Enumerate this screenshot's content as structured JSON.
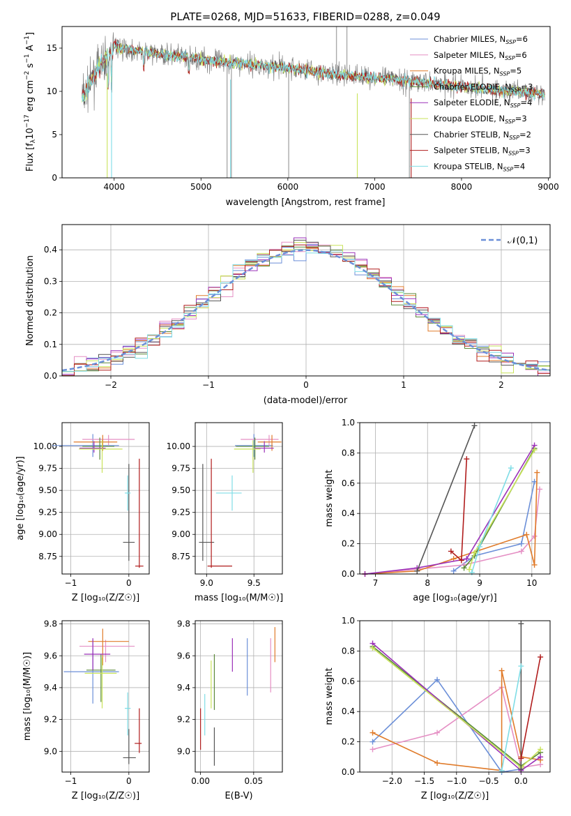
{
  "palette": {
    "chabrier_miles": "#6b8fd8",
    "salpeter_miles": "#e58fc4",
    "kroupa_miles": "#e07b2a",
    "chabrier_elodie": "#5c8a3a",
    "salpeter_elodie": "#9b30b8",
    "kroupa_elodie": "#c9e35a",
    "chabrier_stelib": "#555555",
    "salpeter_stelib": "#b01c1c",
    "kroupa_stelib": "#7fdde6",
    "data": "#808080"
  },
  "legend_models": [
    {
      "key": "chabrier_miles",
      "label": "Chabrier MILES, N",
      "sub": "SSP",
      "tail": "=6"
    },
    {
      "key": "salpeter_miles",
      "label": "Salpeter MILES, N",
      "sub": "SSP",
      "tail": "=6"
    },
    {
      "key": "kroupa_miles",
      "label": "Kroupa MILES, N",
      "sub": "SSP",
      "tail": "=5"
    },
    {
      "key": "chabrier_elodie",
      "label": "Chabrier ELODIE, N",
      "sub": "SSP",
      "tail": "=3"
    },
    {
      "key": "salpeter_elodie",
      "label": "Salpeter ELODIE, N",
      "sub": "SSP",
      "tail": "=4"
    },
    {
      "key": "kroupa_elodie",
      "label": "Kroupa ELODIE, N",
      "sub": "SSP",
      "tail": "=3"
    },
    {
      "key": "chabrier_stelib",
      "label": "Chabrier STELIB, N",
      "sub": "SSP",
      "tail": "=2"
    },
    {
      "key": "salpeter_stelib",
      "label": "Salpeter STELIB, N",
      "sub": "SSP",
      "tail": "=3"
    },
    {
      "key": "kroupa_stelib",
      "label": "Kroupa STELIB, N",
      "sub": "SSP",
      "tail": "=4"
    }
  ],
  "chart_data": [
    {
      "id": "spectrum",
      "type": "line",
      "title": "PLATE=0268, MJD=51633, FIBERID=0288, z=0.049",
      "xlabel": "wavelength [Angstrom, rest frame]",
      "ylabel_parts": [
        "Flux [f",
        "λ",
        "10",
        "−17",
        " erg cm",
        "−2",
        " s",
        "−1",
        " A",
        "−1",
        "]"
      ],
      "xlim": [
        3400,
        9020
      ],
      "ylim": [
        0,
        17.5
      ],
      "xticks": [
        4000,
        5000,
        6000,
        7000,
        8000,
        9000
      ],
      "yticks": [
        0,
        5,
        10,
        15
      ],
      "grid": false,
      "legend": "top-right",
      "continuum": {
        "x": [
          3640,
          3700,
          3800,
          3900,
          3950,
          4000,
          4100,
          4300,
          4500,
          4700,
          4900,
          5100,
          5300,
          5500,
          5700,
          6000,
          6300,
          6600,
          6900,
          7200,
          7500,
          7800,
          8100,
          8400,
          8700,
          8950
        ],
        "y": [
          9.3,
          10.5,
          12.5,
          13.8,
          14.5,
          15.2,
          15.0,
          14.6,
          14.3,
          14.1,
          13.9,
          13.6,
          13.4,
          13.2,
          13.0,
          12.7,
          12.3,
          11.9,
          11.7,
          11.4,
          11.1,
          10.8,
          10.5,
          10.1,
          9.9,
          9.7
        ]
      },
      "data_range": [
        3630,
        8960
      ]
    },
    {
      "id": "residuals",
      "type": "line",
      "title": "",
      "xlabel": "(data-model)/error",
      "ylabel": "Normed distribution",
      "xlim": [
        -2.5,
        2.5
      ],
      "ylim": [
        0,
        0.48
      ],
      "xticks": [
        -2,
        -1,
        0,
        1,
        2
      ],
      "xticklabels": [
        "−2",
        "−1",
        "0",
        "1",
        "2"
      ],
      "yticks": [
        0.0,
        0.1,
        0.2,
        0.3,
        0.4
      ],
      "yticklabels": [
        "0.0",
        "0.1",
        "0.2",
        "0.3",
        "0.4"
      ],
      "grid": true,
      "legend": "top-right",
      "legend_label": "𝒩(0,1)",
      "bins": 40
    },
    {
      "id": "age_vs_Z",
      "type": "scatter",
      "xlabel": "Z [log₁₀(Z/Z☉)]",
      "ylabel": "age  [log₁₀(age/yr)]",
      "xlim": [
        -1.15,
        0.35
      ],
      "ylim": [
        8.55,
        10.27
      ],
      "xticks": [
        -1,
        0
      ],
      "xticklabels": [
        "−1",
        "0"
      ],
      "yticks": [
        8.75,
        9.0,
        9.25,
        9.5,
        9.75,
        10.0
      ],
      "yticklabels": [
        "8.75",
        "9.00",
        "9.25",
        "9.50",
        "9.75",
        "10.00"
      ],
      "grid": true,
      "points": [
        {
          "key": "chabrier_miles",
          "x": -0.62,
          "y": 10.01,
          "xe": [
            0.7,
            0.45
          ],
          "ye": [
            0.13,
            0.13
          ]
        },
        {
          "key": "salpeter_miles",
          "x": -0.35,
          "y": 10.08,
          "xe": [
            0.45,
            0.45
          ],
          "ye": [
            0.07,
            0.05
          ]
        },
        {
          "key": "kroupa_miles",
          "x": -0.45,
          "y": 10.05,
          "xe": [
            0.5,
            0.25
          ],
          "ye": [
            0.1,
            0.08
          ]
        },
        {
          "key": "chabrier_elodie",
          "x": -0.5,
          "y": 10.0,
          "xe": [
            0.3,
            0.25
          ],
          "ye": [
            0.15,
            0.1
          ]
        },
        {
          "key": "salpeter_elodie",
          "x": -0.6,
          "y": 9.98,
          "xe": [
            0.25,
            0.2
          ],
          "ye": [
            0.05,
            0.08
          ]
        },
        {
          "key": "kroupa_elodie",
          "x": -0.46,
          "y": 9.97,
          "xe": [
            0.4,
            0.35
          ],
          "ye": [
            0.27,
            0.1
          ]
        },
        {
          "key": "chabrier_stelib",
          "x": 0.0,
          "y": 8.91,
          "xe": [
            0.1,
            0.1
          ],
          "ye": [
            0.21,
            0.89
          ]
        },
        {
          "key": "salpeter_stelib",
          "x": 0.18,
          "y": 8.64,
          "xe": [
            0.07,
            0.07
          ],
          "ye": [
            0.02,
            1.22
          ]
        },
        {
          "key": "kroupa_stelib",
          "x": -0.02,
          "y": 9.47,
          "xe": [
            0.05,
            0.05
          ],
          "ye": [
            0.2,
            0.2
          ]
        }
      ]
    },
    {
      "id": "age_vs_mass",
      "type": "scatter",
      "xlabel": "mass [log₁₀(M/M☉)]",
      "ylabel": "",
      "xlim": [
        8.88,
        9.8
      ],
      "ylim": [
        8.55,
        10.27
      ],
      "xticks": [
        9.0,
        9.5
      ],
      "xticklabels": [
        "9.0",
        "9.5"
      ],
      "yticks": [
        8.75,
        9.0,
        9.25,
        9.5,
        9.75,
        10.0
      ],
      "yticklabels": [
        "8.75",
        "9.00",
        "9.25",
        "9.50",
        "9.75",
        "10.00"
      ],
      "grid": true,
      "points": [
        {
          "key": "chabrier_miles",
          "x": 9.5,
          "y": 10.01,
          "xe": [
            0.2,
            0.2
          ],
          "ye": [
            0.13,
            0.13
          ]
        },
        {
          "key": "salpeter_miles",
          "x": 9.66,
          "y": 10.08,
          "xe": [
            0.3,
            0.1
          ],
          "ye": [
            0.07,
            0.05
          ]
        },
        {
          "key": "kroupa_miles",
          "x": 9.69,
          "y": 10.05,
          "xe": [
            0.15,
            0.1
          ],
          "ye": [
            0.1,
            0.08
          ]
        },
        {
          "key": "chabrier_elodie",
          "x": 9.51,
          "y": 10.0,
          "xe": [
            0.2,
            0.15
          ],
          "ye": [
            0.15,
            0.1
          ]
        },
        {
          "key": "salpeter_elodie",
          "x": 9.61,
          "y": 9.98,
          "xe": [
            0.1,
            0.1
          ],
          "ye": [
            0.05,
            0.08
          ]
        },
        {
          "key": "kroupa_elodie",
          "x": 9.49,
          "y": 9.97,
          "xe": [
            0.2,
            0.08
          ],
          "ye": [
            0.27,
            0.1
          ]
        },
        {
          "key": "chabrier_stelib",
          "x": 8.96,
          "y": 8.91,
          "xe": [
            0.04,
            0.12
          ],
          "ye": [
            0.21,
            0.89
          ]
        },
        {
          "key": "salpeter_stelib",
          "x": 9.05,
          "y": 8.64,
          "xe": [
            0.04,
            0.22
          ],
          "ye": [
            0.02,
            1.22
          ]
        },
        {
          "key": "kroupa_stelib",
          "x": 9.27,
          "y": 9.47,
          "xe": [
            0.17,
            0.1
          ],
          "ye": [
            0.2,
            0.2
          ]
        }
      ]
    },
    {
      "id": "mass_weight_vs_age",
      "type": "line",
      "xlabel": "age  [log₁₀(age/yr)]",
      "ylabel": "mass weight",
      "xlim": [
        6.7,
        10.35
      ],
      "ylim": [
        0,
        1.0
      ],
      "xticks": [
        7,
        8,
        9,
        10
      ],
      "yticks": [
        0.0,
        0.2,
        0.4,
        0.6,
        0.8,
        1.0
      ],
      "yticklabels": [
        "0.0",
        "0.2",
        "0.4",
        "0.6",
        "0.8",
        "1.0"
      ],
      "grid": true,
      "series": [
        {
          "key": "chabrier_miles",
          "x": [
            8.5,
            8.9,
            9.8,
            10.05
          ],
          "y": [
            0.02,
            0.12,
            0.2,
            0.61
          ]
        },
        {
          "key": "salpeter_miles",
          "x": [
            6.8,
            8.7,
            9.8,
            10.05,
            10.15
          ],
          "y": [
            0.0,
            0.06,
            0.15,
            0.25,
            0.56
          ]
        },
        {
          "key": "kroupa_miles",
          "x": [
            6.8,
            7.8,
            8.5,
            9.9,
            10.05,
            10.1
          ],
          "y": [
            0.0,
            0.02,
            0.1,
            0.26,
            0.06,
            0.67
          ]
        },
        {
          "key": "chabrier_elodie",
          "x": [
            8.7,
            8.9,
            10.05
          ],
          "y": [
            0.04,
            0.12,
            0.83
          ]
        },
        {
          "key": "salpeter_elodie",
          "x": [
            6.8,
            7.8,
            8.75,
            10.05
          ],
          "y": [
            0.0,
            0.04,
            0.1,
            0.85
          ]
        },
        {
          "key": "kroupa_elodie",
          "x": [
            8.8,
            8.9,
            10.05
          ],
          "y": [
            0.03,
            0.14,
            0.82
          ]
        },
        {
          "key": "chabrier_stelib",
          "x": [
            7.8,
            8.9
          ],
          "y": [
            0.02,
            0.98
          ]
        },
        {
          "key": "salpeter_stelib",
          "x": [
            8.45,
            8.65,
            8.75
          ],
          "y": [
            0.15,
            0.09,
            0.76
          ]
        },
        {
          "key": "kroupa_stelib",
          "x": [
            8.85,
            9.0,
            9.6
          ],
          "y": [
            0.01,
            0.18,
            0.7
          ]
        }
      ]
    },
    {
      "id": "mass_vs_Z",
      "type": "scatter",
      "xlabel": "Z [log₁₀(Z/Z☉)]",
      "ylabel": "mass [log₁₀(M/M☉)]",
      "xlim": [
        -1.15,
        0.35
      ],
      "ylim": [
        8.87,
        9.82
      ],
      "xticks": [
        -1,
        0
      ],
      "xticklabels": [
        "−1",
        "0"
      ],
      "yticks": [
        9.0,
        9.2,
        9.4,
        9.6,
        9.8
      ],
      "yticklabels": [
        "9.0",
        "9.2",
        "9.4",
        "9.6",
        "9.8"
      ],
      "grid": true,
      "points": [
        {
          "key": "chabrier_miles",
          "x": -0.62,
          "y": 9.5,
          "xe": [
            0.5,
            0.45
          ],
          "ye": [
            0.2,
            0.2
          ]
        },
        {
          "key": "salpeter_miles",
          "x": -0.4,
          "y": 9.66,
          "xe": [
            0.45,
            0.5
          ],
          "ye": [
            0.1,
            0.04
          ]
        },
        {
          "key": "kroupa_miles",
          "x": -0.45,
          "y": 9.69,
          "xe": [
            0.25,
            0.45
          ],
          "ye": [
            0.15,
            0.08
          ]
        },
        {
          "key": "chabrier_elodie",
          "x": -0.48,
          "y": 9.51,
          "xe": [
            0.25,
            0.25
          ],
          "ye": [
            0.2,
            0.1
          ]
        },
        {
          "key": "salpeter_elodie",
          "x": -0.62,
          "y": 9.61,
          "xe": [
            0.15,
            0.3
          ],
          "ye": [
            0.1,
            0.1
          ]
        },
        {
          "key": "kroupa_elodie",
          "x": -0.46,
          "y": 9.49,
          "xe": [
            0.3,
            0.25
          ],
          "ye": [
            0.22,
            0.1
          ]
        },
        {
          "key": "chabrier_stelib",
          "x": 0.0,
          "y": 8.96,
          "xe": [
            0.1,
            0.12
          ],
          "ye": [
            0.04,
            0.18
          ]
        },
        {
          "key": "salpeter_stelib",
          "x": 0.18,
          "y": 9.05,
          "xe": [
            0.08,
            0.04
          ],
          "ye": [
            0.06,
            0.22
          ]
        },
        {
          "key": "kroupa_stelib",
          "x": -0.02,
          "y": 9.27,
          "xe": [
            0.05,
            0.05
          ],
          "ye": [
            0.17,
            0.1
          ]
        }
      ]
    },
    {
      "id": "mass_vs_ebv",
      "type": "scatter",
      "xlabel": "E(B-V)",
      "ylabel": "",
      "xlim": [
        -0.005,
        0.077
      ],
      "ylim": [
        8.87,
        9.82
      ],
      "xticks": [
        0.0,
        0.05
      ],
      "xticklabels": [
        "0.00",
        "0.05"
      ],
      "yticks": [
        9.0,
        9.2,
        9.4,
        9.6,
        9.8
      ],
      "yticklabels": [
        "9.0",
        "9.2",
        "9.4",
        "9.6",
        "9.8"
      ],
      "grid": true,
      "points": [
        {
          "key": "chabrier_miles",
          "x": 0.044,
          "y": 9.5,
          "ye": [
            0.15,
            0.21
          ]
        },
        {
          "key": "salpeter_miles",
          "x": 0.066,
          "y": 9.52,
          "ye": [
            0.15,
            0.19
          ]
        },
        {
          "key": "kroupa_miles",
          "x": 0.07,
          "y": 9.67,
          "ye": [
            0.11,
            0.11
          ]
        },
        {
          "key": "chabrier_elodie",
          "x": 0.013,
          "y": 9.43,
          "ye": [
            0.17,
            0.18
          ]
        },
        {
          "key": "salpeter_elodie",
          "x": 0.03,
          "y": 9.61,
          "ye": [
            0.11,
            0.1
          ]
        },
        {
          "key": "kroupa_elodie",
          "x": 0.01,
          "y": 9.42,
          "ye": [
            0.15,
            0.15
          ]
        },
        {
          "key": "chabrier_stelib",
          "x": 0.013,
          "y": 8.97,
          "ye": [
            0.06,
            0.18
          ]
        },
        {
          "key": "salpeter_stelib",
          "x": 0.0,
          "y": 9.14,
          "ye": [
            0.13,
            0.13
          ]
        },
        {
          "key": "kroupa_stelib",
          "x": 0.004,
          "y": 9.23,
          "ye": [
            0.13,
            0.13
          ]
        }
      ]
    },
    {
      "id": "mass_weight_vs_Z",
      "type": "line",
      "xlabel": "Z [log₁₀(Z/Z☉)]",
      "ylabel": "mass weight",
      "xlim": [
        -2.5,
        0.45
      ],
      "ylim": [
        0,
        1.0
      ],
      "xticks": [
        -2.0,
        -1.5,
        -1.0,
        -0.5,
        0.0
      ],
      "xticklabels": [
        "−2.0",
        "−1.5",
        "−1.0",
        "−0.5",
        "0.0"
      ],
      "yticks": [
        0.0,
        0.2,
        0.4,
        0.6,
        0.8,
        1.0
      ],
      "yticklabels": [
        "0.0",
        "0.2",
        "0.4",
        "0.6",
        "0.8",
        "1.0"
      ],
      "grid": true,
      "series": [
        {
          "key": "chabrier_miles",
          "x": [
            -2.3,
            -1.3,
            -0.3,
            0.0
          ],
          "y": [
            0.2,
            0.61,
            0.0,
            0.02
          ]
        },
        {
          "key": "salpeter_miles",
          "x": [
            -2.3,
            -1.3,
            -0.3,
            0.0,
            0.3
          ],
          "y": [
            0.15,
            0.26,
            0.56,
            0.03,
            0.05
          ]
        },
        {
          "key": "kroupa_miles",
          "x": [
            -2.3,
            -1.3,
            -0.3,
            -0.3,
            0.0,
            0.3
          ],
          "y": [
            0.26,
            0.06,
            0.01,
            0.67,
            0.1,
            0.08
          ]
        },
        {
          "key": "chabrier_elodie",
          "x": [
            -2.3,
            0.0,
            0.3
          ],
          "y": [
            0.83,
            0.04,
            0.13
          ]
        },
        {
          "key": "salpeter_elodie",
          "x": [
            -2.3,
            0.0,
            0.3
          ],
          "y": [
            0.85,
            0.01,
            0.1
          ]
        },
        {
          "key": "kroupa_elodie",
          "x": [
            -2.3,
            0.0,
            0.3
          ],
          "y": [
            0.82,
            0.03,
            0.15
          ]
        },
        {
          "key": "chabrier_stelib",
          "x": [
            0.0,
            0.0
          ],
          "y": [
            0.98,
            0.02
          ]
        },
        {
          "key": "salpeter_stelib",
          "x": [
            0.0,
            0.3
          ],
          "y": [
            0.09,
            0.76
          ]
        },
        {
          "key": "kroupa_stelib",
          "x": [
            -0.3,
            0.0
          ],
          "y": [
            0.01,
            0.7
          ]
        }
      ]
    }
  ]
}
